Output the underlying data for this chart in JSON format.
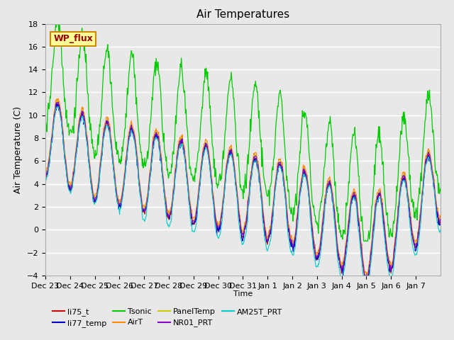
{
  "title": "Air Temperatures",
  "ylabel": "Air Temperature (C)",
  "xlabel": "Time",
  "ylim": [
    -4,
    18
  ],
  "yticks": [
    -4,
    -2,
    0,
    2,
    4,
    6,
    8,
    10,
    12,
    14,
    16,
    18
  ],
  "xtick_labels": [
    "Dec 23",
    "Dec 24",
    "Dec 25",
    "Dec 26",
    "Dec 27",
    "Dec 28",
    "Dec 29",
    "Dec 30",
    "Dec 31",
    "Jan 1",
    "Jan 2",
    "Jan 3",
    "Jan 4",
    "Jan 5",
    "Jan 6",
    "Jan 7"
  ],
  "series_colors": {
    "li75_t": "#cc0000",
    "li77_temp": "#0000cc",
    "Tsonic": "#00cc00",
    "AirT": "#ff8800",
    "PanelTemp": "#cccc00",
    "NR01_PRT": "#8800cc",
    "AM25T_PRT": "#00cccc"
  },
  "legend_label": "WP_flux",
  "legend_box_color": "#ffff99",
  "legend_box_edge": "#cc8800",
  "background_color": "#e8e8e8",
  "grid_color": "#ffffff"
}
